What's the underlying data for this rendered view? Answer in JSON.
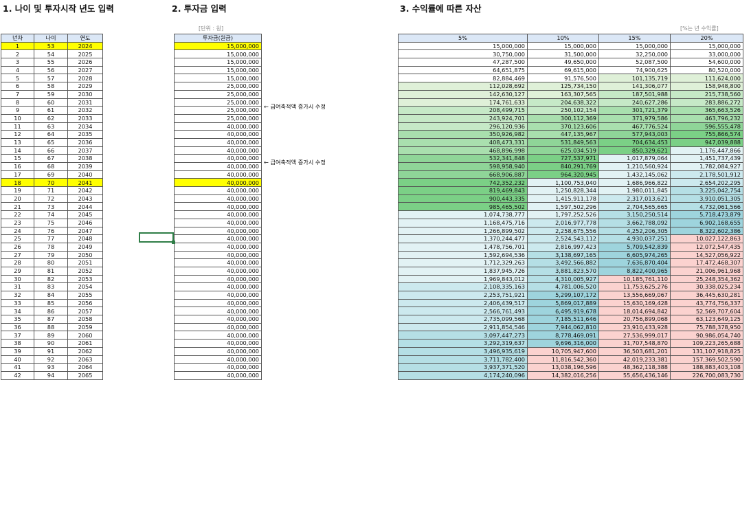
{
  "sections": {
    "title1": "1. 나이 및 투자시작 년도 입력",
    "title2": "2. 투자금 입력",
    "title3": "3. 수익률에 따른 자산",
    "unit_note": "[단위 : 원]",
    "rate_note": "[%는 년 수익률]"
  },
  "tableA": {
    "headers": [
      "년차",
      "나이",
      "연도"
    ],
    "highlight_rows": [
      1,
      18
    ],
    "rows": [
      [
        "1",
        "53",
        "2024"
      ],
      [
        "2",
        "54",
        "2025"
      ],
      [
        "3",
        "55",
        "2026"
      ],
      [
        "4",
        "56",
        "2027"
      ],
      [
        "5",
        "57",
        "2028"
      ],
      [
        "6",
        "58",
        "2029"
      ],
      [
        "7",
        "59",
        "2030"
      ],
      [
        "8",
        "60",
        "2031"
      ],
      [
        "9",
        "61",
        "2032"
      ],
      [
        "10",
        "62",
        "2033"
      ],
      [
        "11",
        "63",
        "2034"
      ],
      [
        "12",
        "64",
        "2035"
      ],
      [
        "13",
        "65",
        "2036"
      ],
      [
        "14",
        "66",
        "2037"
      ],
      [
        "15",
        "67",
        "2038"
      ],
      [
        "16",
        "68",
        "2039"
      ],
      [
        "17",
        "69",
        "2040"
      ],
      [
        "18",
        "70",
        "2041"
      ],
      [
        "19",
        "71",
        "2042"
      ],
      [
        "20",
        "72",
        "2043"
      ],
      [
        "21",
        "73",
        "2044"
      ],
      [
        "22",
        "74",
        "2045"
      ],
      [
        "23",
        "75",
        "2046"
      ],
      [
        "24",
        "76",
        "2047"
      ],
      [
        "25",
        "77",
        "2048"
      ],
      [
        "26",
        "78",
        "2049"
      ],
      [
        "27",
        "79",
        "2050"
      ],
      [
        "28",
        "80",
        "2051"
      ],
      [
        "29",
        "81",
        "2052"
      ],
      [
        "30",
        "82",
        "2053"
      ],
      [
        "31",
        "83",
        "2054"
      ],
      [
        "32",
        "84",
        "2055"
      ],
      [
        "33",
        "85",
        "2056"
      ],
      [
        "34",
        "86",
        "2057"
      ],
      [
        "35",
        "87",
        "2058"
      ],
      [
        "36",
        "88",
        "2059"
      ],
      [
        "37",
        "89",
        "2060"
      ],
      [
        "38",
        "90",
        "2061"
      ],
      [
        "39",
        "91",
        "2062"
      ],
      [
        "40",
        "92",
        "2063"
      ],
      [
        "41",
        "93",
        "2064"
      ],
      [
        "42",
        "94",
        "2065"
      ]
    ]
  },
  "tableB": {
    "header": "투자금(원금)",
    "values": [
      "15,000,000",
      "15,000,000",
      "15,000,000",
      "15,000,000",
      "15,000,000",
      "25,000,000",
      "25,000,000",
      "25,000,000",
      "25,000,000",
      "25,000,000",
      "40,000,000",
      "40,000,000",
      "40,000,000",
      "40,000,000",
      "40,000,000",
      "40,000,000",
      "40,000,000",
      "40,000,000",
      "40,000,000",
      "40,000,000",
      "40,000,000",
      "40,000,000",
      "40,000,000",
      "40,000,000",
      "40,000,000",
      "40,000,000",
      "40,000,000",
      "40,000,000",
      "40,000,000",
      "40,000,000",
      "40,000,000",
      "40,000,000",
      "40,000,000",
      "40,000,000",
      "40,000,000",
      "40,000,000",
      "40,000,000",
      "40,000,000",
      "40,000,000",
      "40,000,000",
      "40,000,000",
      "40,000,000"
    ],
    "annotations": [
      "← 급여축적액 증가시 수정",
      "← 급여축적액 증가시 수정"
    ]
  },
  "tableC": {
    "headers": [
      "5%",
      "10%",
      "15%",
      "20%"
    ],
    "rows": [
      [
        "15,000,000",
        "15,000,000",
        "15,000,000",
        "15,000,000"
      ],
      [
        "30,750,000",
        "31,500,000",
        "32,250,000",
        "33,000,000"
      ],
      [
        "47,287,500",
        "49,650,000",
        "52,087,500",
        "54,600,000"
      ],
      [
        "64,651,875",
        "69,615,000",
        "74,900,625",
        "80,520,000"
      ],
      [
        "82,884,469",
        "91,576,500",
        "101,135,719",
        "111,624,000"
      ],
      [
        "112,028,692",
        "125,734,150",
        "141,306,077",
        "158,948,800"
      ],
      [
        "142,630,127",
        "163,307,565",
        "187,501,988",
        "215,738,560"
      ],
      [
        "174,761,633",
        "204,638,322",
        "240,627,286",
        "283,886,272"
      ],
      [
        "208,499,715",
        "250,102,154",
        "301,721,379",
        "365,663,526"
      ],
      [
        "243,924,701",
        "300,112,369",
        "371,979,586",
        "463,796,232"
      ],
      [
        "296,120,936",
        "370,123,606",
        "467,776,524",
        "596,555,478"
      ],
      [
        "350,926,982",
        "447,135,967",
        "577,943,003",
        "755,866,574"
      ],
      [
        "408,473,331",
        "531,849,563",
        "704,634,453",
        "947,039,888"
      ],
      [
        "468,896,998",
        "625,034,519",
        "850,329,621",
        "1,176,447,866"
      ],
      [
        "532,341,848",
        "727,537,971",
        "1,017,879,064",
        "1,451,737,439"
      ],
      [
        "598,958,940",
        "840,291,769",
        "1,210,560,924",
        "1,782,084,927"
      ],
      [
        "668,906,887",
        "964,320,945",
        "1,432,145,062",
        "2,178,501,912"
      ],
      [
        "742,352,232",
        "1,100,753,040",
        "1,686,966,822",
        "2,654,202,295"
      ],
      [
        "819,469,843",
        "1,250,828,344",
        "1,980,011,845",
        "3,225,042,754"
      ],
      [
        "900,443,335",
        "1,415,911,178",
        "2,317,013,621",
        "3,910,051,305"
      ],
      [
        "985,465,502",
        "1,597,502,296",
        "2,704,565,665",
        "4,732,061,566"
      ],
      [
        "1,074,738,777",
        "1,797,252,526",
        "3,150,250,514",
        "5,718,473,879"
      ],
      [
        "1,168,475,716",
        "2,016,977,778",
        "3,662,788,092",
        "6,902,168,655"
      ],
      [
        "1,266,899,502",
        "2,258,675,556",
        "4,252,206,305",
        "8,322,602,386"
      ],
      [
        "1,370,244,477",
        "2,524,543,112",
        "4,930,037,251",
        "10,027,122,863"
      ],
      [
        "1,478,756,701",
        "2,816,997,423",
        "5,709,542,839",
        "12,072,547,435"
      ],
      [
        "1,592,694,536",
        "3,138,697,165",
        "6,605,974,265",
        "14,527,056,922"
      ],
      [
        "1,712,329,263",
        "3,492,566,882",
        "7,636,870,404",
        "17,472,468,307"
      ],
      [
        "1,837,945,726",
        "3,881,823,570",
        "8,822,400,965",
        "21,006,961,968"
      ],
      [
        "1,969,843,012",
        "4,310,005,927",
        "10,185,761,110",
        "25,248,354,362"
      ],
      [
        "2,108,335,163",
        "4,781,006,520",
        "11,753,625,276",
        "30,338,025,234"
      ],
      [
        "2,253,751,921",
        "5,299,107,172",
        "13,556,669,067",
        "36,445,630,281"
      ],
      [
        "2,406,439,517",
        "5,869,017,889",
        "15,630,169,428",
        "43,774,756,337"
      ],
      [
        "2,566,761,493",
        "6,495,919,678",
        "18,014,694,842",
        "52,569,707,604"
      ],
      [
        "2,735,099,568",
        "7,185,511,646",
        "20,756,899,068",
        "63,123,649,125"
      ],
      [
        "2,911,854,546",
        "7,944,062,810",
        "23,910,433,928",
        "75,788,378,950"
      ],
      [
        "3,097,447,273",
        "8,778,469,091",
        "27,536,999,017",
        "90,986,054,740"
      ],
      [
        "3,292,319,637",
        "9,696,316,000",
        "31,707,548,870",
        "109,223,265,688"
      ],
      [
        "3,496,935,619",
        "10,705,947,600",
        "36,503,681,201",
        "131,107,918,825"
      ],
      [
        "3,711,782,400",
        "11,816,542,360",
        "42,019,233,381",
        "157,369,502,590"
      ],
      [
        "3,937,371,520",
        "13,038,196,596",
        "48,362,118,388",
        "188,883,403,108"
      ],
      [
        "4,174,240,096",
        "14,382,016,256",
        "55,656,436,146",
        "226,700,083,730"
      ]
    ]
  },
  "colors": {
    "header_bg": "#dbe7f6",
    "highlight": "#ffff00",
    "green_scale": [
      "#dff0d8",
      "#c6e9c7",
      "#a9dfae",
      "#8fd598",
      "#7bd086"
    ],
    "teal_scale": [
      "#e2f2f4",
      "#cce9ee",
      "#b5dfe5",
      "#9ed4dd"
    ],
    "pink": "#fbd2cf",
    "selection": "#2e7d46"
  }
}
